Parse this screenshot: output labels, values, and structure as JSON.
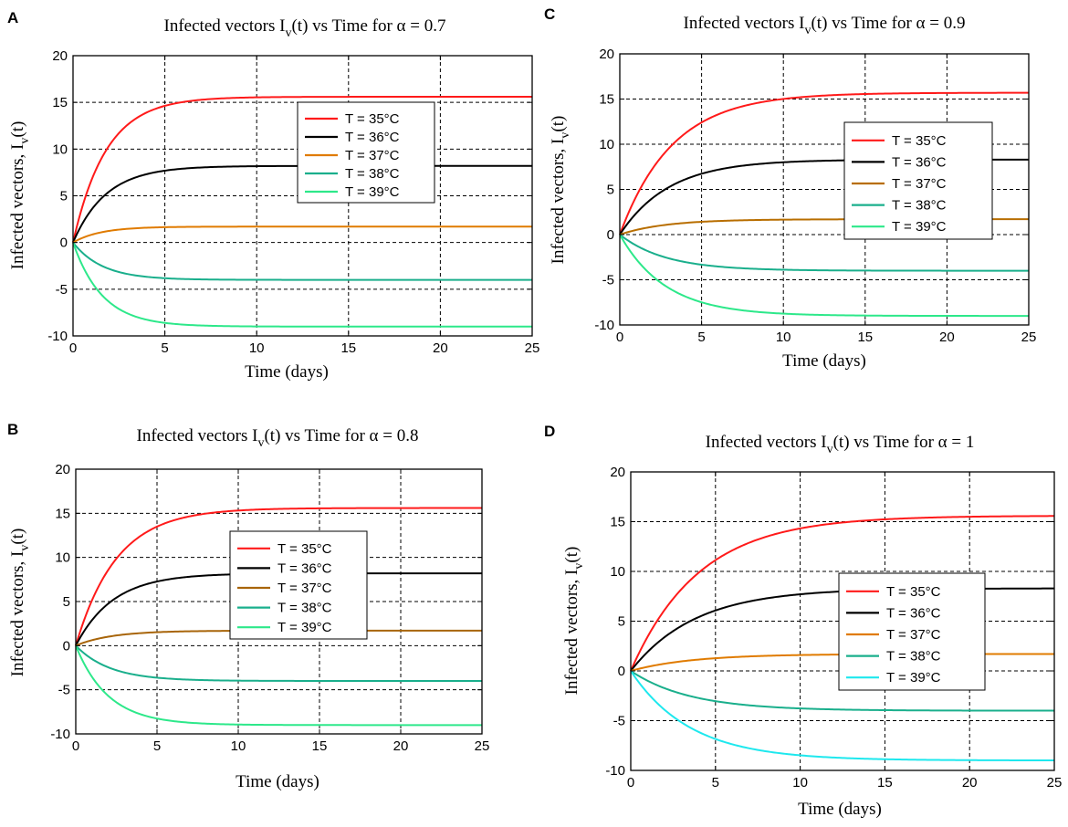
{
  "figure": {
    "x_label": "Time (days)",
    "y_label_main": "Infected vectors, I",
    "y_label_sub": "v",
    "y_label_end": "(t)"
  },
  "chart_data": [
    {
      "type": "line",
      "panel": "A",
      "title": {
        "main": "Infected vectors I",
        "sub": "v",
        "rest": "(t) vs Time for α = 0.7"
      },
      "alpha": 0.7,
      "xlabel": "Time (days)",
      "ylabel": "Infected vectors, Iv(t)",
      "xlim": [
        0,
        25
      ],
      "ylim": [
        -10,
        20
      ],
      "xticks": [
        0,
        5,
        10,
        15,
        20,
        25
      ],
      "yticks": [
        -10,
        -5,
        0,
        5,
        10,
        15,
        20
      ],
      "grid": true,
      "legend_position": "upper-right",
      "series": [
        {
          "name": "T = 35°C",
          "color": "#ff1a1a",
          "final": 15.6,
          "tau": 1.8
        },
        {
          "name": "T = 36°C",
          "color": "#000000",
          "final": 8.2,
          "tau": 1.8
        },
        {
          "name": "T = 37°C",
          "color": "#e07b00",
          "final": 1.7,
          "tau": 1.5
        },
        {
          "name": "T = 38°C",
          "color": "#1aaf8c",
          "final": -4.0,
          "tau": 1.6
        },
        {
          "name": "T = 39°C",
          "color": "#2de88a",
          "final": -9.0,
          "tau": 1.6
        }
      ]
    },
    {
      "type": "line",
      "panel": "C",
      "title": {
        "main": "Infected vectors I",
        "sub": "v",
        "rest": "(t) vs Time for α = 0.9"
      },
      "alpha": 0.9,
      "xlabel": "Time (days)",
      "ylabel": "Infected vectors, Iv(t)",
      "xlim": [
        0,
        25
      ],
      "ylim": [
        -10,
        20
      ],
      "xticks": [
        0,
        5,
        10,
        15,
        20,
        25
      ],
      "yticks": [
        -10,
        -5,
        0,
        5,
        10,
        15,
        20
      ],
      "grid": true,
      "legend_position": "center-right",
      "series": [
        {
          "name": "T = 35°C",
          "color": "#ff1a1a",
          "final": 15.7,
          "tau": 3.2
        },
        {
          "name": "T = 36°C",
          "color": "#000000",
          "final": 8.3,
          "tau": 3.0
        },
        {
          "name": "T = 37°C",
          "color": "#b86e00",
          "final": 1.7,
          "tau": 2.8
        },
        {
          "name": "T = 38°C",
          "color": "#1aaf8c",
          "final": -4.0,
          "tau": 2.8
        },
        {
          "name": "T = 39°C",
          "color": "#2de88a",
          "final": -9.0,
          "tau": 2.8
        }
      ]
    },
    {
      "type": "line",
      "panel": "B",
      "title": {
        "main": "Infected vectors I",
        "sub": "v",
        "rest": "(t) vs Time for α = 0.8"
      },
      "alpha": 0.8,
      "xlabel": "Time (days)",
      "ylabel": "Infected vectors, Iv(t)",
      "xlim": [
        0,
        25
      ],
      "ylim": [
        -10,
        20
      ],
      "xticks": [
        0,
        5,
        10,
        15,
        20,
        25
      ],
      "yticks": [
        -10,
        -5,
        0,
        5,
        10,
        15,
        20
      ],
      "grid": true,
      "legend_position": "center",
      "series": [
        {
          "name": "T = 35°C",
          "color": "#ff1a1a",
          "final": 15.6,
          "tau": 2.5
        },
        {
          "name": "T = 36°C",
          "color": "#000000",
          "final": 8.2,
          "tau": 2.3
        },
        {
          "name": "T = 37°C",
          "color": "#a8650a",
          "final": 1.7,
          "tau": 2.2
        },
        {
          "name": "T = 38°C",
          "color": "#1aaf8c",
          "final": -4.0,
          "tau": 2.1
        },
        {
          "name": "T = 39°C",
          "color": "#2de88a",
          "final": -9.0,
          "tau": 2.0
        }
      ]
    },
    {
      "type": "line",
      "panel": "D",
      "title": {
        "main": "Infected vectors I",
        "sub": "v",
        "rest": "(t) vs Time for α = 1"
      },
      "alpha": 1,
      "xlabel": "Time (days)",
      "ylabel": "Infected vectors, Iv(t)",
      "xlim": [
        0,
        25
      ],
      "ylim": [
        -10,
        20
      ],
      "xticks": [
        0,
        5,
        10,
        15,
        20,
        25
      ],
      "yticks": [
        -10,
        -5,
        0,
        5,
        10,
        15,
        20
      ],
      "grid": true,
      "legend_position": "center-right",
      "series": [
        {
          "name": "T = 35°C",
          "color": "#ff1a1a",
          "final": 15.6,
          "tau": 4.0
        },
        {
          "name": "T = 36°C",
          "color": "#000000",
          "final": 8.3,
          "tau": 3.8
        },
        {
          "name": "T = 37°C",
          "color": "#e07b00",
          "final": 1.7,
          "tau": 3.6
        },
        {
          "name": "T = 38°C",
          "color": "#1aaf8c",
          "final": -4.0,
          "tau": 3.5
        },
        {
          "name": "T = 39°C",
          "color": "#1ee8ee",
          "final": -9.0,
          "tau": 3.5
        }
      ]
    }
  ]
}
